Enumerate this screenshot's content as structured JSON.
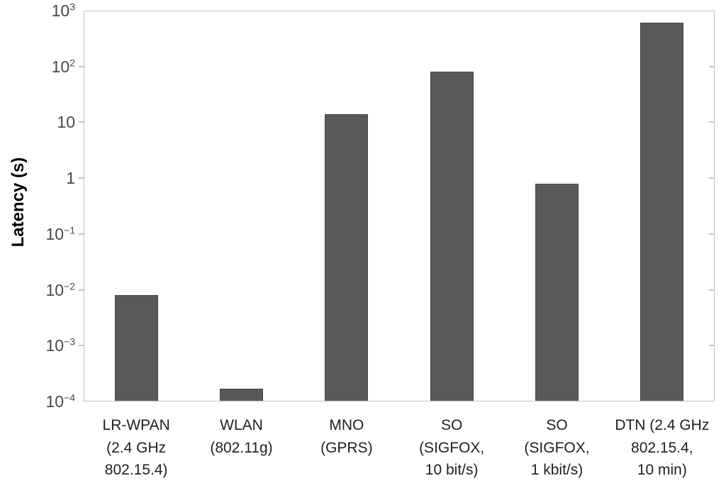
{
  "chart_data": {
    "type": "bar",
    "title": "",
    "xlabel": "",
    "ylabel": "Latency (s)",
    "y_scale": "log",
    "ylim": [
      0.0001,
      1000
    ],
    "y_tick_exponents": [
      3,
      2,
      1,
      0,
      -1,
      -2,
      -3,
      -4
    ],
    "grid": false,
    "legend": "none",
    "categories": [
      "LR-WPAN (2.4 GHz 802.15.4)",
      "WLAN (802.11g)",
      "MNO (GPRS)",
      "SO (SIGFOX, 10 bit/s)",
      "SO (SIGFOX, 1 kbit/s)",
      "DTN (2.4 GHz 802.15.4, 10 min)"
    ],
    "category_lines": [
      [
        "LR-WPAN",
        "(2.4 GHz",
        "802.15.4)"
      ],
      [
        "WLAN",
        "(802.11g)"
      ],
      [
        "MNO",
        "(GPRS)"
      ],
      [
        "SO",
        "(SIGFOX,",
        "10 bit/s)"
      ],
      [
        "SO",
        "(SIGFOX,",
        "1 kbit/s)"
      ],
      [
        "DTN (2.4 GHz",
        "802.15.4,",
        "10 min)"
      ]
    ],
    "values": [
      0.008,
      0.00017,
      14,
      80,
      0.8,
      600
    ],
    "bar_color": "#595959",
    "bar_border_color": "#454545",
    "axis_color": "#c3c3c3",
    "ytick_label_color": "#484848",
    "category_label_color": "#1f1f1f",
    "ylabel_color": "#000000"
  }
}
